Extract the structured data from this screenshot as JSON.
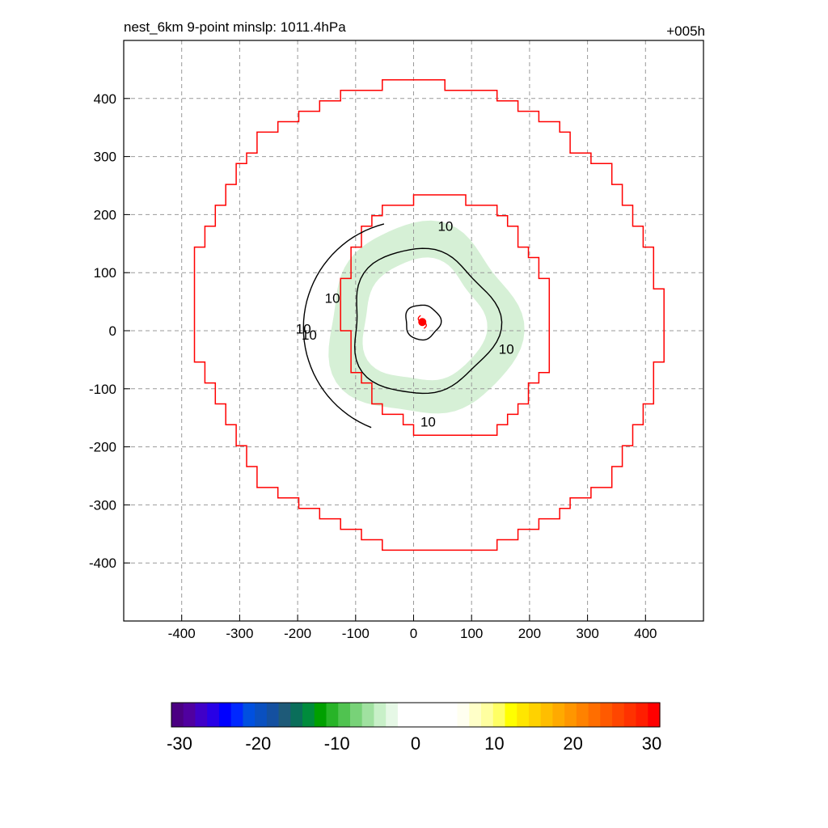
{
  "header": {
    "title": "nest_6km  9-point minslp: 1011.4hPa",
    "forecast_hour": "+005h"
  },
  "chart_data": [
    {
      "type": "contour",
      "title": "nest_6km  9-point minslp: 1011.4hPa",
      "annotation_right": "+005h",
      "xlim": [
        -500,
        500
      ],
      "ylim": [
        -500,
        500
      ],
      "x_ticks": [
        -400,
        -300,
        -200,
        -100,
        0,
        100,
        200,
        300,
        400
      ],
      "y_ticks": [
        -400,
        -300,
        -200,
        -100,
        0,
        100,
        200,
        300,
        400
      ],
      "grid": true,
      "grid_style": "dashed",
      "storm_center": {
        "x": 15,
        "y": 15,
        "color": "#ff0000"
      },
      "contour_level_labels": [
        "10",
        "10",
        "10",
        "10",
        "10",
        "10"
      ],
      "outer_boundary_ring": {
        "color": "#ff0000",
        "shape": "stepped",
        "x_extent": [
          -380,
          425
        ],
        "y_extent": [
          -380,
          428
        ]
      },
      "inner_boundary_ring": {
        "color": "#ff0000",
        "shape": "stepped",
        "x_extent": [
          -120,
          235
        ],
        "y_extent": [
          -185,
          235
        ]
      },
      "filled_band": {
        "value_range": [
          -10,
          -5
        ],
        "color": "#d6f0d6",
        "center": [
          15,
          15
        ],
        "inner_radius": 105,
        "outer_radius": 165
      },
      "contour_10": {
        "color": "#000000",
        "center": [
          15,
          15
        ],
        "radius": 125
      },
      "center_contour": {
        "color": "#000000",
        "center": [
          15,
          15
        ],
        "radius": 30
      }
    },
    {
      "type": "colorbar",
      "range": [
        -30,
        30
      ],
      "tick_labels": [
        "-30",
        "-20",
        "-10",
        "0",
        "10",
        "20",
        "30"
      ],
      "colors": [
        "#4b0082",
        "#5000a0",
        "#4000c8",
        "#2800e6",
        "#0000ff",
        "#0028ff",
        "#0050e0",
        "#0a50c0",
        "#1450a0",
        "#1e5a78",
        "#0a6e5a",
        "#008c3c",
        "#00a000",
        "#28b428",
        "#50c350",
        "#78d278",
        "#a0e1a0",
        "#c8f0c8",
        "#e6f8e6",
        "#ffffff",
        "#ffffff",
        "#ffffff",
        "#ffffff",
        "#ffffff",
        "#fffff0",
        "#ffffc8",
        "#ffffa0",
        "#ffff64",
        "#ffff00",
        "#ffe600",
        "#ffd200",
        "#ffbe00",
        "#ffaa00",
        "#ff9600",
        "#ff8200",
        "#ff6e00",
        "#ff5a00",
        "#ff4600",
        "#ff3200",
        "#ff1e00",
        "#ff0000"
      ]
    }
  ]
}
